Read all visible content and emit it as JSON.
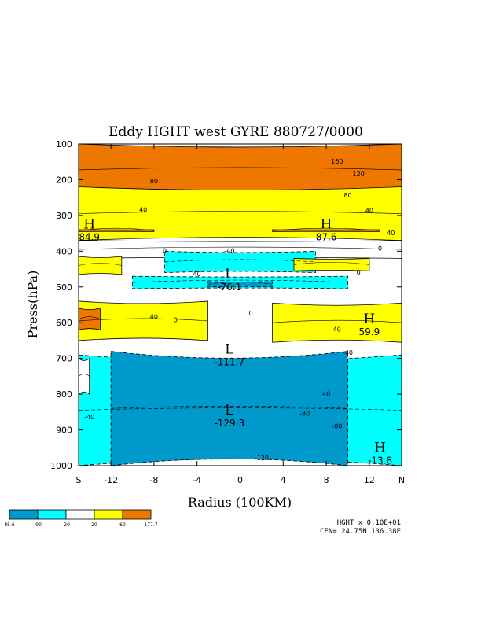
{
  "chart_data": {
    "type": "heatmap",
    "title": "Eddy HGHT west GYRE 880727/0000",
    "xlabel": "Radius (100KM)",
    "ylabel": "Press(hPa)",
    "xlim": [
      -15,
      15
    ],
    "ylim": [
      1000,
      100
    ],
    "x_ticks": [
      {
        "value": -15,
        "label": "S"
      },
      {
        "value": -12,
        "label": "-12"
      },
      {
        "value": -8,
        "label": "-8"
      },
      {
        "value": -4,
        "label": "-4"
      },
      {
        "value": 0,
        "label": "0"
      },
      {
        "value": 4,
        "label": "4"
      },
      {
        "value": 8,
        "label": "8"
      },
      {
        "value": 12,
        "label": "12"
      },
      {
        "value": 15,
        "label": "N"
      }
    ],
    "y_ticks": [
      {
        "value": 100,
        "label": "100"
      },
      {
        "value": 200,
        "label": "200"
      },
      {
        "value": 300,
        "label": "300"
      },
      {
        "value": 400,
        "label": "400"
      },
      {
        "value": 500,
        "label": "500"
      },
      {
        "value": 600,
        "label": "600"
      },
      {
        "value": 700,
        "label": "700"
      },
      {
        "value": 800,
        "label": "800"
      },
      {
        "value": 900,
        "label": "900"
      },
      {
        "value": 1000,
        "label": "1000"
      }
    ],
    "shading_levels": [
      "85.6",
      "-90",
      "-20",
      "20",
      "60",
      "177.7"
    ],
    "shading_colors": [
      "#0099cc",
      "#00ffff",
      "#ffffff",
      "#ffff00",
      "#ee7700"
    ],
    "bands": [
      {
        "p_top": 100,
        "p_bot": 245,
        "value": 100,
        "x_from": -15,
        "x_to": 15
      },
      {
        "p_top": 220,
        "p_bot": 370,
        "value": 40,
        "x_from": -15,
        "x_to": 15
      },
      {
        "p_top": 340,
        "p_bot": 345,
        "value": 80,
        "x_from": -15,
        "x_to": -8
      },
      {
        "p_top": 340,
        "p_bot": 345,
        "value": 80,
        "x_from": 3,
        "x_to": 13
      },
      {
        "p_top": 370,
        "p_bot": 420,
        "value": 0,
        "x_from": -15,
        "x_to": 15
      },
      {
        "p_top": 400,
        "p_bot": 460,
        "value": -40,
        "x_from": -7,
        "x_to": 7
      },
      {
        "p_top": 415,
        "p_bot": 465,
        "value": 30,
        "x_from": -15,
        "x_to": -11
      },
      {
        "p_top": 420,
        "p_bot": 455,
        "value": 30,
        "x_from": 5,
        "x_to": 12
      },
      {
        "p_top": 470,
        "p_bot": 505,
        "value": -40,
        "x_from": -10,
        "x_to": 10
      },
      {
        "p_top": 485,
        "p_bot": 500,
        "value": -95,
        "x_from": -3,
        "x_to": 3
      },
      {
        "p_top": 540,
        "p_bot": 650,
        "value": 40,
        "x_from": -15,
        "x_to": -3
      },
      {
        "p_top": 560,
        "p_bot": 620,
        "value": 80,
        "x_from": -15,
        "x_to": -13
      },
      {
        "p_top": 545,
        "p_bot": 655,
        "value": 40,
        "x_from": 3,
        "x_to": 15
      },
      {
        "p_top": 690,
        "p_bot": 1000,
        "value": -40,
        "x_from": -15,
        "x_to": 15
      },
      {
        "p_top": 680,
        "p_bot": 1000,
        "value": -100,
        "x_from": -12,
        "x_to": 10
      },
      {
        "p_top": 700,
        "p_bot": 800,
        "value": 0,
        "x_from": -15,
        "x_to": -14
      }
    ],
    "extrema": [
      {
        "kind": "H",
        "value": "84.9",
        "x": -14,
        "p": 350
      },
      {
        "kind": "H",
        "value": "87.6",
        "x": 8,
        "p": 350
      },
      {
        "kind": "L",
        "value": "-76.1",
        "x": -1,
        "p": 490
      },
      {
        "kind": "H",
        "value": "59.9",
        "x": 12,
        "p": 615
      },
      {
        "kind": "L",
        "value": "-111.7",
        "x": -1,
        "p": 700
      },
      {
        "kind": "L",
        "value": "-129.3",
        "x": -1,
        "p": 870
      },
      {
        "kind": "H",
        "value": "-13.8",
        "x": 13,
        "p": 975
      }
    ],
    "contour_labels": [
      {
        "text": "160",
        "x": 9,
        "p": 155
      },
      {
        "text": "120",
        "x": 11,
        "p": 190
      },
      {
        "text": "80",
        "x": -8,
        "p": 210
      },
      {
        "text": "80",
        "x": 10,
        "p": 250
      },
      {
        "text": "40",
        "x": -9,
        "p": 290
      },
      {
        "text": "40",
        "x": 12,
        "p": 292
      },
      {
        "text": "40",
        "x": 14,
        "p": 355
      },
      {
        "text": "0",
        "x": -7,
        "p": 405
      },
      {
        "text": "-40",
        "x": -1,
        "p": 405
      },
      {
        "text": "0",
        "x": 13,
        "p": 398
      },
      {
        "text": "40",
        "x": -4,
        "p": 470
      },
      {
        "text": "0",
        "x": 11,
        "p": 465
      },
      {
        "text": "40",
        "x": -8,
        "p": 590
      },
      {
        "text": "0",
        "x": -6,
        "p": 598
      },
      {
        "text": "0",
        "x": 1,
        "p": 580
      },
      {
        "text": "40",
        "x": 9,
        "p": 625
      },
      {
        "text": "-40",
        "x": 10,
        "p": 690
      },
      {
        "text": "40",
        "x": 8,
        "p": 805
      },
      {
        "text": "-40",
        "x": -14,
        "p": 870
      },
      {
        "text": "-80",
        "x": 6,
        "p": 860
      },
      {
        "text": "-80",
        "x": 9,
        "p": 895
      },
      {
        "text": "-120",
        "x": 2,
        "p": 985
      }
    ]
  },
  "footer": {
    "scale_note": "HGHT x  0.10E+01",
    "center_note": "CEN= 24.75N  136.38E"
  }
}
